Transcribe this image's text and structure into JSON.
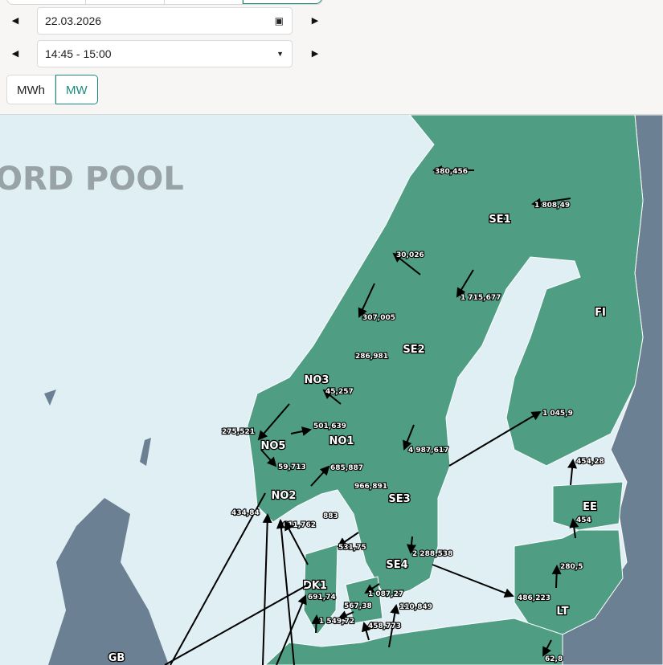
{
  "controls": {
    "date": "22.03.2026",
    "time": "14:45 - 15:00",
    "units": [
      {
        "label": "MWh",
        "active": false
      },
      {
        "label": "MW",
        "active": true
      }
    ],
    "calendar_icon": "calendar-icon",
    "dropdown_icon": "caret-down-icon"
  },
  "map": {
    "logo_text": "ORD POOL",
    "colors": {
      "sea": "#dfeff4",
      "nordic_land": "#4f9e84",
      "other_land": "#6b8092",
      "accent": "#1b8a7c"
    },
    "zones": [
      "SE1",
      "SE2",
      "SE3",
      "SE4",
      "FI",
      "NO3",
      "NO1",
      "NO5",
      "NO2",
      "DK1",
      "EE",
      "LT",
      "GB"
    ],
    "flows": [
      "380,456",
      "1 808,49",
      "30,026",
      "1 715,677",
      "307,005",
      "286,981",
      "45,257",
      "275,521",
      "501,639",
      "59,713",
      "685,887",
      "966,891",
      "4 987,617",
      "1 045,9",
      "454,28",
      "454",
      "280,5",
      "486,223",
      "62,8",
      "2 288,538",
      "531,75",
      "1 087,27",
      "110,849",
      "458,773",
      "567,38",
      "1 549,72",
      "691,74",
      "434,84",
      "611,762",
      "883"
    ]
  }
}
